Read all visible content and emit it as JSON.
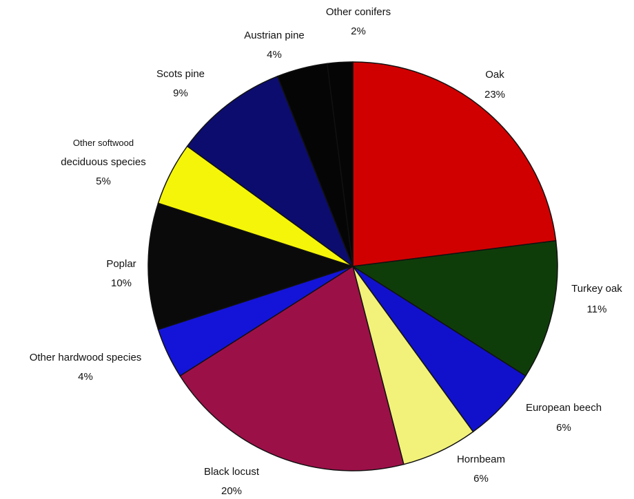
{
  "chart_data": {
    "type": "pie",
    "title": "",
    "start_angle_deg": 0,
    "direction": "clockwise",
    "slices": [
      {
        "name": "Oak",
        "value": 23,
        "label": "23%",
        "color": "#d10000"
      },
      {
        "name": "Turkey oak",
        "value": 11,
        "label": "11%",
        "color": "#0f3d0a"
      },
      {
        "name": "European beech",
        "value": 6,
        "label": "6%",
        "color": "#1111cc"
      },
      {
        "name": "Hornbeam",
        "value": 6,
        "label": "6%",
        "color": "#f2f27a"
      },
      {
        "name": "Black locust",
        "value": 20,
        "label": "20%",
        "color": "#9c1048"
      },
      {
        "name": "Other hardwood species",
        "value": 4,
        "label": "4%",
        "color": "#1414d8"
      },
      {
        "name": "Poplar",
        "value": 10,
        "label": "10%",
        "color": "#0a0a0a"
      },
      {
        "name": "Other softwood deciduous species",
        "value": 5,
        "label": "5%",
        "color": "#f5f50a"
      },
      {
        "name": "Scots pine",
        "value": 9,
        "label": "9%",
        "color": "#0c0c6e"
      },
      {
        "name": "Austrian pine",
        "value": 4,
        "label": "4%",
        "color": "#050505"
      },
      {
        "name": "Other conifers",
        "value": 2,
        "label": "2%",
        "color": "#050505"
      }
    ]
  }
}
